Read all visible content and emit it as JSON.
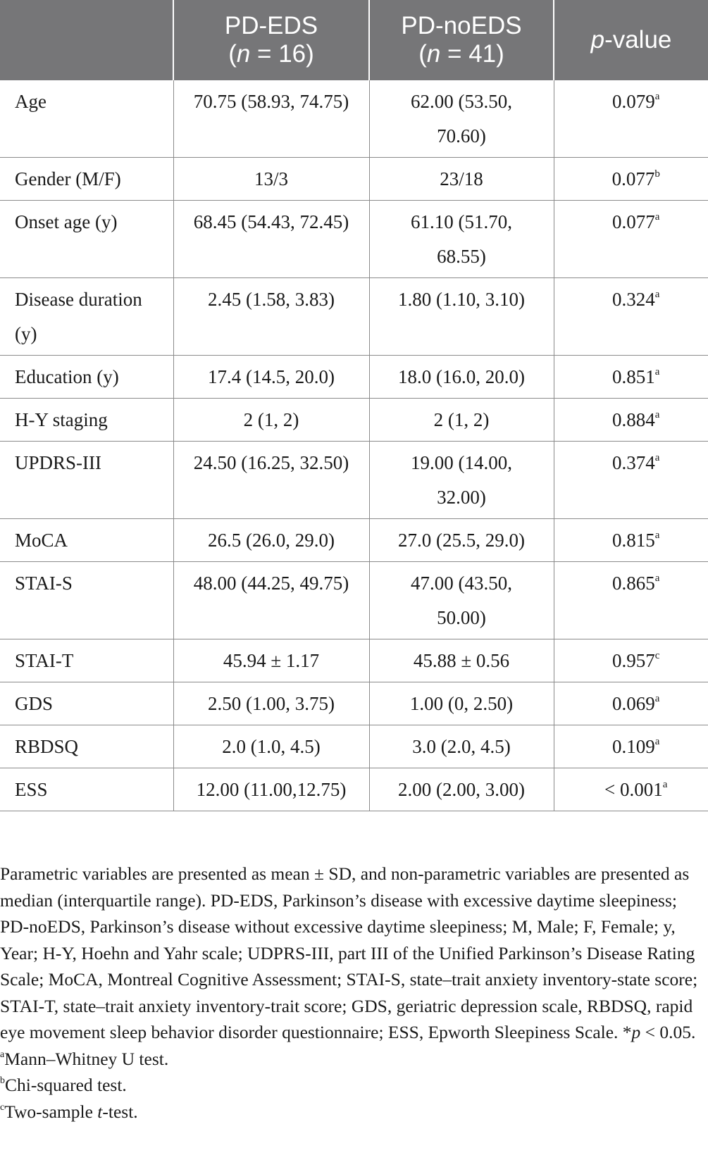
{
  "table": {
    "headers": [
      {
        "main": "",
        "sub": ""
      },
      {
        "main": "PD-EDS",
        "sub_italic": "n",
        "sub_rest": " = 16)"
      },
      {
        "main": "PD-noEDS",
        "sub_italic": "n",
        "sub_rest": " = 41)"
      },
      {
        "main_italic": "p",
        "main_rest": "-value"
      }
    ],
    "rows": [
      {
        "label": "Age",
        "eds": "70.75 (58.93, 74.75)",
        "noeds_1": "62.00 (53.50,",
        "noeds_2": "70.60)",
        "p": "0.079",
        "fn": "a"
      },
      {
        "label": "Gender (M/F)",
        "eds": "13/3",
        "noeds_1": "23/18",
        "noeds_2": "",
        "p": "0.077",
        "fn": "b"
      },
      {
        "label": "Onset age (y)",
        "eds": "68.45 (54.43, 72.45)",
        "noeds_1": "61.10 (51.70,",
        "noeds_2": "68.55)",
        "p": "0.077",
        "fn": "a"
      },
      {
        "label_1": "Disease duration",
        "label_2": "(y)",
        "eds": "2.45 (1.58, 3.83)",
        "noeds_1": "1.80 (1.10, 3.10)",
        "noeds_2": "",
        "p": "0.324",
        "fn": "a"
      },
      {
        "label": "Education (y)",
        "eds": "17.4 (14.5, 20.0)",
        "noeds_1": "18.0 (16.0, 20.0)",
        "noeds_2": "",
        "p": "0.851",
        "fn": "a"
      },
      {
        "label": "H-Y staging",
        "eds": "2 (1, 2)",
        "noeds_1": "2 (1, 2)",
        "noeds_2": "",
        "p": "0.884",
        "fn": "a"
      },
      {
        "label": "UPDRS-III",
        "eds": "24.50 (16.25, 32.50)",
        "noeds_1": "19.00 (14.00,",
        "noeds_2": "32.00)",
        "p": "0.374",
        "fn": "a"
      },
      {
        "label": "MoCA",
        "eds": "26.5 (26.0, 29.0)",
        "noeds_1": "27.0 (25.5, 29.0)",
        "noeds_2": "",
        "p": "0.815",
        "fn": "a"
      },
      {
        "label": "STAI-S",
        "eds": "48.00 (44.25, 49.75)",
        "noeds_1": "47.00 (43.50,",
        "noeds_2": "50.00)",
        "p": "0.865",
        "fn": "a"
      },
      {
        "label": "STAI-T",
        "eds": "45.94 ± 1.17",
        "noeds_1": "45.88 ± 0.56",
        "noeds_2": "",
        "p": "0.957",
        "fn": "c"
      },
      {
        "label": "GDS",
        "eds": "2.50 (1.00, 3.75)",
        "noeds_1": "1.00 (0, 2.50)",
        "noeds_2": "",
        "p": "0.069",
        "fn": "a"
      },
      {
        "label": "RBDSQ",
        "eds": "2.0 (1.0, 4.5)",
        "noeds_1": "3.0 (2.0, 4.5)",
        "noeds_2": "",
        "p": "0.109",
        "fn": "a"
      },
      {
        "label": "ESS",
        "eds": "12.00 (11.00,12.75)",
        "noeds_1": "2.00 (2.00, 3.00)",
        "noeds_2": "",
        "p": "< 0.001",
        "fn": "a"
      }
    ]
  },
  "footnote": {
    "para_1": "Parametric variables are presented as mean ± SD, and non-parametric variables are presented as median (interquartile range). PD-EDS, Parkinson’s disease with excessive daytime sleepiness; PD-noEDS, Parkinson’s disease without excessive daytime sleepiness; M, Male; F, Female; y, Year; H-Y, Hoehn and Yahr scale; UDPRS-III, part III of the Unified Parkinson’s Disease Rating Scale; MoCA, Montreal Cognitive Assessment; STAI-S, state–trait anxiety inventory-state score; STAI-T, state–trait anxiety inventory-trait score; GDS, geriatric depression scale, RBDSQ, rapid eye movement sleep behavior disorder questionnaire; ESS, Epworth Sleepiness Scale. *",
    "para_1_italic": "p",
    "para_1_end": " < 0.05.",
    "note_a_mark": "a",
    "note_a": "Mann–Whitney U test.",
    "note_b_mark": "b",
    "note_b": "Chi-squared test.",
    "note_c_mark": "c",
    "note_c_pre": "Two-sample ",
    "note_c_italic": "t",
    "note_c_post": "-test."
  },
  "colors": {
    "header_bg": "#767678",
    "header_text": "#ffffff",
    "rule": "#8a8a8a"
  }
}
